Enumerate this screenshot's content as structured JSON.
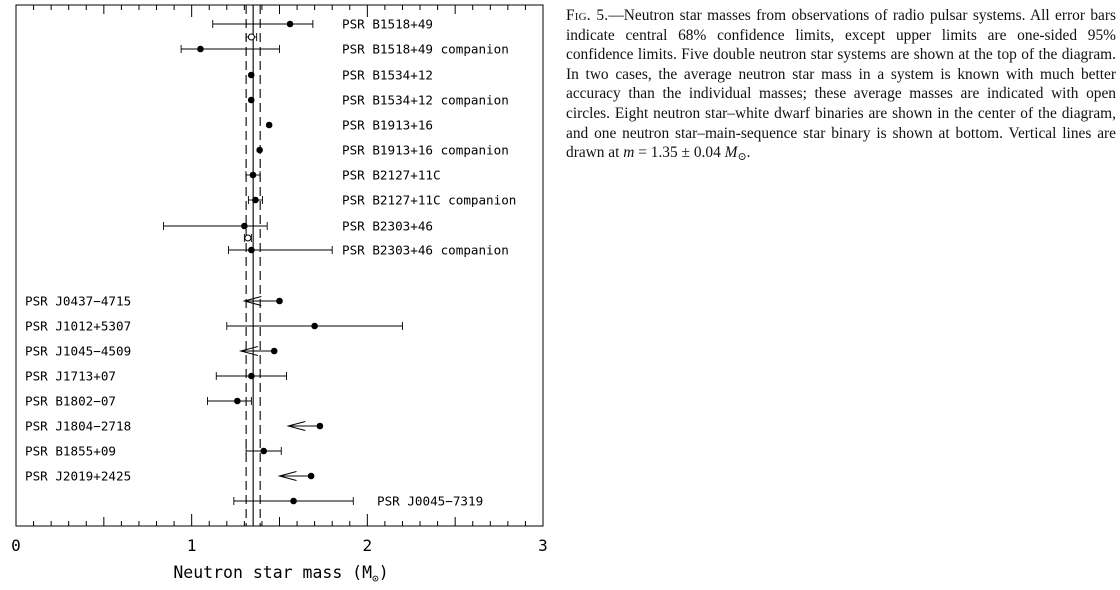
{
  "chart_data": {
    "type": "scatter",
    "xlabel": "Neutron star mass (M",
    "xlabel_sub": "⊙",
    "xlabel_close": ")",
    "xlim": [
      0,
      3
    ],
    "x_ticks": [
      "0",
      "1",
      "2",
      "3"
    ],
    "reference_lines": [
      1.31,
      1.35,
      1.39
    ],
    "legend": "none",
    "grid": false,
    "rows": [
      {
        "label": "PSR B1518+49",
        "label_side": "right",
        "mass": 1.56,
        "err_low": 0.44,
        "err_high": 0.13,
        "kind": "point"
      },
      {
        "label": "",
        "label_side": "none",
        "mass": 1.34,
        "err_low": 0.03,
        "err_high": 0.03,
        "kind": "average"
      },
      {
        "label": "PSR B1518+49 companion",
        "label_side": "right",
        "mass": 1.05,
        "err_low": 0.11,
        "err_high": 0.45,
        "kind": "point"
      },
      {
        "label": "PSR B1534+12",
        "label_side": "right",
        "mass": 1.339,
        "err_low": 0.003,
        "err_high": 0.003,
        "kind": "point"
      },
      {
        "label": "PSR B1534+12 companion",
        "label_side": "right",
        "mass": 1.339,
        "err_low": 0.003,
        "err_high": 0.003,
        "kind": "point"
      },
      {
        "label": "PSR B1913+16",
        "label_side": "right",
        "mass": 1.441,
        "err_low": 0.0005,
        "err_high": 0.0005,
        "kind": "point"
      },
      {
        "label": "PSR B1913+16 companion",
        "label_side": "right",
        "mass": 1.387,
        "err_low": 0.0005,
        "err_high": 0.0005,
        "kind": "point"
      },
      {
        "label": "PSR B2127+11C",
        "label_side": "right",
        "mass": 1.349,
        "err_low": 0.04,
        "err_high": 0.04,
        "kind": "point"
      },
      {
        "label": "PSR B2127+11C companion",
        "label_side": "right",
        "mass": 1.363,
        "err_low": 0.04,
        "err_high": 0.04,
        "kind": "point"
      },
      {
        "label": "PSR B2303+46",
        "label_side": "right",
        "mass": 1.3,
        "err_low": 0.46,
        "err_high": 0.13,
        "kind": "point"
      },
      {
        "label": "",
        "label_side": "none",
        "mass": 1.32,
        "err_low": 0.02,
        "err_high": 0.02,
        "kind": "average"
      },
      {
        "label": "PSR B2303+46 companion",
        "label_side": "right",
        "mass": 1.34,
        "err_low": 0.13,
        "err_high": 0.46,
        "kind": "point"
      },
      {
        "label": "PSR J0437−4715",
        "label_side": "left",
        "mass": 1.5,
        "limit_end": 1.3,
        "kind": "upper_limit"
      },
      {
        "label": "PSR J1012+5307",
        "label_side": "left",
        "mass": 1.7,
        "err_low": 0.5,
        "err_high": 0.5,
        "kind": "point"
      },
      {
        "label": "PSR J1045−4509",
        "label_side": "left",
        "mass": 1.47,
        "limit_end": 1.28,
        "kind": "upper_limit"
      },
      {
        "label": "PSR J1713+07",
        "label_side": "left",
        "mass": 1.34,
        "err_low": 0.2,
        "err_high": 0.2,
        "kind": "point"
      },
      {
        "label": "PSR B1802−07",
        "label_side": "left",
        "mass": 1.26,
        "err_low": 0.17,
        "err_high": 0.08,
        "kind": "point"
      },
      {
        "label": "PSR J1804−2718",
        "label_side": "left",
        "mass": 1.73,
        "limit_end": 1.55,
        "kind": "upper_limit"
      },
      {
        "label": "PSR B1855+09",
        "label_side": "left",
        "mass": 1.41,
        "err_low": 0.1,
        "err_high": 0.1,
        "kind": "point"
      },
      {
        "label": "PSR J2019+2425",
        "label_side": "left",
        "mass": 1.68,
        "limit_end": 1.5,
        "kind": "upper_limit"
      },
      {
        "label": "PSR J0045−7319",
        "label_side": "right",
        "mass": 1.58,
        "err_low": 0.34,
        "err_high": 0.34,
        "kind": "point"
      }
    ]
  },
  "caption": {
    "fig_label": "Fig. 5.",
    "text": "—Neutron star masses from observations of radio pulsar systems. All error bars indicate central 68% confidence limits, except upper limits are one-sided 95% confidence limits. Five double neutron star systems are shown at the top of the diagram. In two cases, the average neutron star mass in a system is known with much better accuracy than the individual masses; these average masses are indicated with open circles. Eight neutron star–white dwarf binaries are shown in the center of the diagram, and one neutron star–main-sequence star binary is shown at bottom. Vertical lines are drawn at ",
    "formula_var": "m",
    "formula_rest": " = 1.35 ± 0.04 ",
    "formula_unit": "M",
    "formula_sub": "⊙",
    "end": "."
  }
}
